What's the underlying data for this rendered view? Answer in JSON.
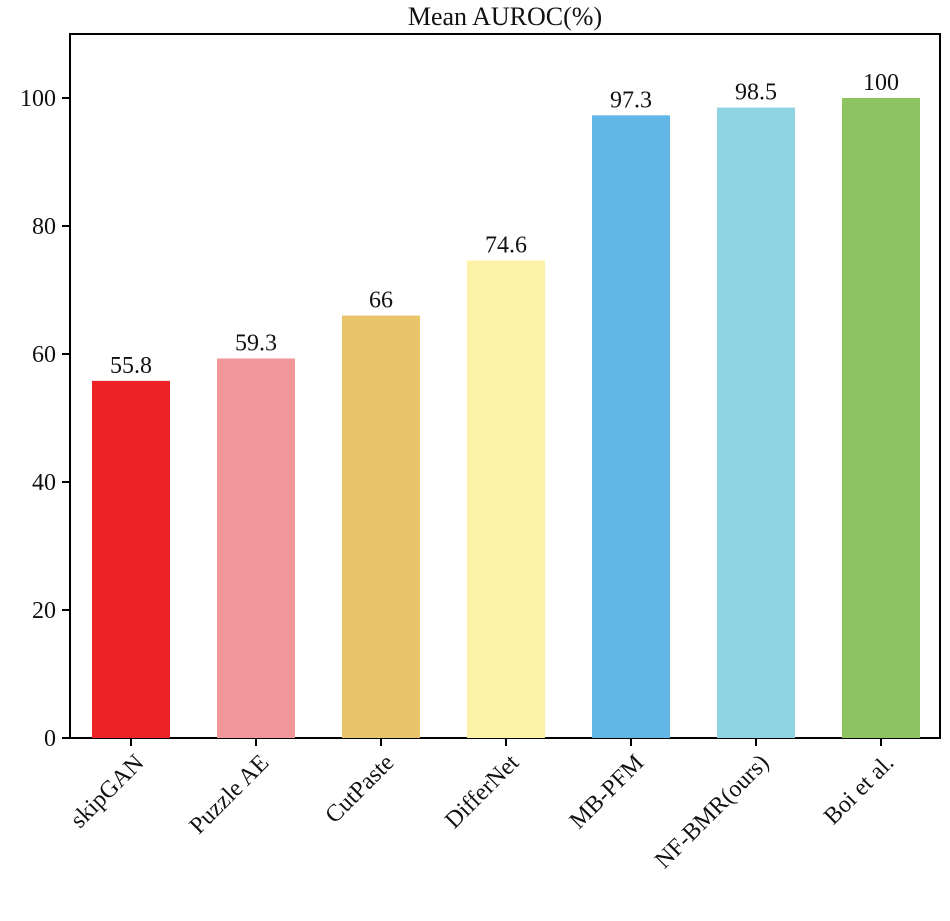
{
  "chart_data": {
    "type": "bar",
    "title": "Mean AUROC(%)",
    "xlabel": "",
    "ylabel": "",
    "ylim": [
      0,
      110
    ],
    "yticks": [
      0,
      20,
      40,
      60,
      80,
      100
    ],
    "grid": false,
    "categories": [
      "skipGAN",
      "Puzzle AE",
      "CutPaste",
      "DifferNet",
      "MB-PFM",
      "NF-BMR(ours)",
      "Boi et al."
    ],
    "values": [
      55.8,
      59.3,
      66,
      74.6,
      97.3,
      98.5,
      100
    ],
    "value_labels": [
      "55.8",
      "59.3",
      "66",
      "74.6",
      "97.3",
      "98.5",
      "100"
    ],
    "colors": [
      "#ec2227",
      "#f29799",
      "#e9c46a",
      "#fbf2a5",
      "#63b7e6",
      "#8ed3e1",
      "#8dc461"
    ]
  }
}
